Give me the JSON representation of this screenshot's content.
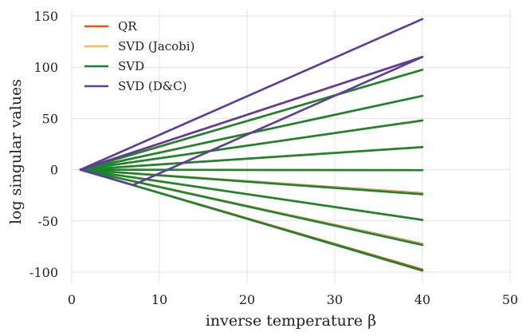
{
  "chart_data": {
    "type": "line",
    "title": "",
    "xlabel": "inverse temperature β",
    "ylabel": "log singular values",
    "xlim": [
      0,
      50
    ],
    "ylim": [
      -110,
      155
    ],
    "xticks": [
      0,
      10,
      20,
      30,
      40,
      50
    ],
    "yticks": [
      150,
      100,
      50,
      0,
      -50,
      -100
    ],
    "xtick_labels": [
      "0",
      "10",
      "20",
      "30",
      "40",
      "50"
    ],
    "ytick_labels": [
      "150",
      "100",
      "50",
      "0",
      "-50",
      "-100"
    ],
    "grid": true,
    "legend_position": "top-left",
    "x_range": [
      1,
      40
    ],
    "series": [
      {
        "name": "QR",
        "color": "#e6550d",
        "segments": [
          {
            "start": [
              1,
              0
            ],
            "end": [
              40,
              110
            ]
          },
          {
            "start": [
              1,
              0
            ],
            "end": [
              40,
              97.5
            ]
          },
          {
            "start": [
              1,
              0
            ],
            "end": [
              40,
              72
            ]
          },
          {
            "start": [
              1,
              0
            ],
            "end": [
              40,
              48
            ]
          },
          {
            "start": [
              1,
              0
            ],
            "end": [
              40,
              22
            ]
          },
          {
            "start": [
              1,
              0
            ],
            "end": [
              40,
              -0.5
            ]
          },
          {
            "start": [
              1,
              0
            ],
            "end": [
              40,
              -23
            ]
          },
          {
            "start": [
              1,
              0
            ],
            "end": [
              40,
              -49
            ]
          },
          {
            "start": [
              1,
              0
            ],
            "end": [
              40,
              -72.5
            ]
          },
          {
            "start": [
              1,
              0
            ],
            "end": [
              40,
              -97.5
            ]
          }
        ]
      },
      {
        "name": "SVD (Jacobi)",
        "color": "#fdb863",
        "segments": [
          {
            "start": [
              1,
              0
            ],
            "end": [
              40,
              97.5
            ]
          },
          {
            "start": [
              1,
              0
            ],
            "end": [
              40,
              72
            ]
          },
          {
            "start": [
              1,
              0
            ],
            "end": [
              40,
              48
            ]
          },
          {
            "start": [
              1,
              0
            ],
            "end": [
              40,
              22
            ]
          },
          {
            "start": [
              1,
              0
            ],
            "end": [
              40,
              -0.5
            ]
          },
          {
            "start": [
              1,
              0
            ],
            "end": [
              40,
              -23.5
            ]
          },
          {
            "start": [
              1,
              0
            ],
            "end": [
              40,
              -49
            ]
          },
          {
            "start": [
              1,
              0
            ],
            "end": [
              40,
              -73
            ]
          }
        ]
      },
      {
        "name": "SVD",
        "color": "#1a8431",
        "segments": [
          {
            "start": [
              1,
              0
            ],
            "end": [
              40,
              97.5
            ]
          },
          {
            "start": [
              1,
              0
            ],
            "end": [
              40,
              72
            ]
          },
          {
            "start": [
              1,
              0
            ],
            "end": [
              40,
              48
            ]
          },
          {
            "start": [
              1,
              0
            ],
            "end": [
              40,
              22
            ]
          },
          {
            "start": [
              1,
              0
            ],
            "end": [
              40,
              -0.5
            ]
          },
          {
            "start": [
              1,
              0
            ],
            "end": [
              40,
              -24
            ]
          },
          {
            "start": [
              1,
              0
            ],
            "end": [
              40,
              -49
            ]
          },
          {
            "start": [
              1,
              0
            ],
            "end": [
              40,
              -73.5
            ]
          },
          {
            "start": [
              1,
              0
            ],
            "end": [
              40,
              -98.5
            ]
          }
        ]
      },
      {
        "name": "SVD (D&C)",
        "color": "#5e3c99",
        "segments": [
          {
            "start": [
              1,
              0
            ],
            "end": [
              40,
              147
            ]
          },
          {
            "start": [
              1,
              0
            ],
            "end": [
              40,
              110
            ]
          },
          {
            "start": [
              1,
              0
            ],
            "end": [
              7,
              -15
            ]
          },
          {
            "start": [
              7,
              -15
            ],
            "end": [
              40,
              110
            ]
          }
        ]
      }
    ]
  }
}
